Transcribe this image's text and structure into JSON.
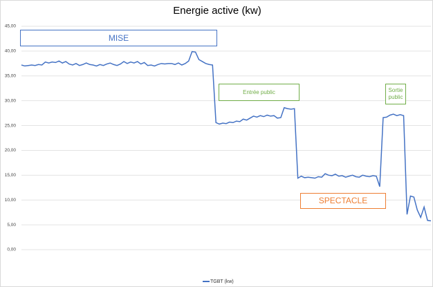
{
  "chart_data": {
    "type": "line",
    "title": "Energie active (kw)",
    "categories": [
      null,
      null,
      null,
      null,
      null,
      null,
      null,
      null,
      null,
      null,
      null,
      null,
      null,
      null,
      null,
      null,
      null,
      null,
      null,
      null,
      null,
      null,
      null,
      null,
      null,
      null,
      null,
      null,
      null,
      null,
      null,
      null,
      null,
      null,
      null,
      null,
      null,
      null,
      null,
      null,
      null,
      null,
      null,
      null,
      null,
      null,
      null,
      null,
      null,
      null,
      null,
      null,
      null,
      null,
      null,
      null,
      null,
      null,
      null,
      null,
      null,
      null,
      null,
      null,
      null,
      null,
      null,
      null,
      null,
      null,
      null,
      null,
      null,
      null,
      null,
      null,
      null,
      null,
      null,
      null,
      null,
      null,
      null,
      null,
      null,
      null,
      null,
      null,
      null,
      null,
      null,
      null,
      null,
      null,
      null,
      null,
      null,
      null,
      null,
      null,
      null,
      null,
      null,
      null,
      null,
      null,
      null,
      null,
      null,
      null,
      null,
      null,
      null,
      null,
      null,
      null,
      null,
      null,
      null,
      null,
      null
    ],
    "series": [
      {
        "name": "TGBT (kw)",
        "color": "#4472c4",
        "values": [
          37.2,
          37.0,
          37.1,
          37.2,
          37.1,
          37.3,
          37.2,
          37.8,
          37.6,
          37.8,
          37.7,
          38.0,
          37.6,
          37.9,
          37.4,
          37.2,
          37.5,
          37.1,
          37.3,
          37.6,
          37.3,
          37.2,
          37.0,
          37.3,
          37.1,
          37.4,
          37.6,
          37.3,
          37.1,
          37.4,
          37.9,
          37.5,
          37.8,
          37.6,
          37.9,
          37.4,
          37.7,
          37.1,
          37.2,
          37.0,
          37.3,
          37.5,
          37.4,
          37.5,
          37.5,
          37.3,
          37.6,
          37.2,
          37.5,
          38.0,
          39.9,
          39.8,
          38.3,
          37.9,
          37.5,
          37.3,
          37.2,
          25.6,
          25.3,
          25.5,
          25.4,
          25.7,
          25.6,
          25.9,
          25.8,
          26.3,
          26.1,
          26.5,
          26.9,
          26.7,
          27.0,
          26.8,
          27.1,
          26.9,
          27.0,
          26.5,
          26.6,
          28.6,
          28.4,
          28.3,
          28.4,
          14.4,
          14.8,
          14.5,
          14.6,
          14.5,
          14.4,
          14.7,
          14.6,
          15.3,
          15.0,
          14.9,
          15.2,
          14.8,
          14.9,
          14.6,
          14.8,
          15.0,
          14.7,
          14.6,
          15.0,
          14.8,
          14.7,
          14.9,
          14.8,
          12.7,
          26.6,
          26.7,
          27.1,
          27.3,
          27.0,
          27.2,
          27.0,
          7.1,
          10.8,
          10.6,
          8.0,
          6.5,
          8.6,
          5.9,
          5.8
        ]
      }
    ],
    "ylim": [
      0,
      45
    ],
    "yticks": [
      {
        "value": 0,
        "label": "0,00"
      },
      {
        "value": 5,
        "label": "5,00"
      },
      {
        "value": 10,
        "label": "10,00"
      },
      {
        "value": 15,
        "label": "15,00"
      },
      {
        "value": 20,
        "label": "20,00"
      },
      {
        "value": 25,
        "label": "25,00"
      },
      {
        "value": 30,
        "label": "30,00"
      },
      {
        "value": 35,
        "label": "35,00"
      },
      {
        "value": 40,
        "label": "40,00"
      },
      {
        "value": 45,
        "label": "45,00"
      }
    ],
    "grid": true,
    "legend": "bottom",
    "annotations": [
      {
        "text": "MISE",
        "color": "#4472c4"
      },
      {
        "text": "Entrée public",
        "color": "#70ad47"
      },
      {
        "text": "Sortie public",
        "color": "#70ad47"
      },
      {
        "text": "SPECTACLE",
        "color": "#ed7d31"
      }
    ]
  }
}
